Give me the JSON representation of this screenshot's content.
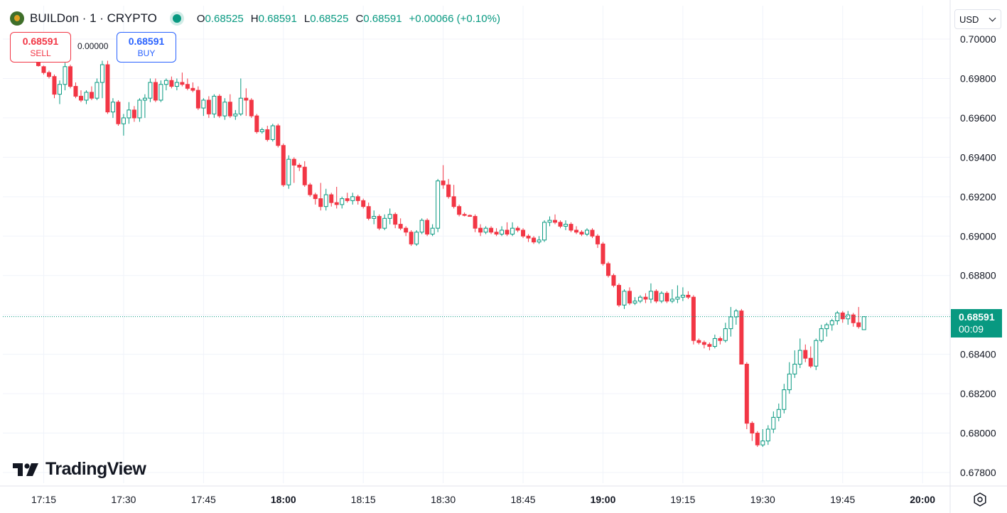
{
  "header": {
    "symbol": "BUILDon · 1 · CRYPTO",
    "ohlc": [
      {
        "key": "O",
        "value": "0.68525"
      },
      {
        "key": "H",
        "value": "0.68591"
      },
      {
        "key": "L",
        "value": "0.68525"
      },
      {
        "key": "C",
        "value": "0.68591"
      }
    ],
    "change": "+0.00066 (+0.10%)"
  },
  "trade": {
    "sell_price": "0.68591",
    "sell_label": "SELL",
    "spread": "0.00000",
    "buy_price": "0.68591",
    "buy_label": "BUY"
  },
  "currency": "USD",
  "last_price": {
    "price": "0.68591",
    "countdown": "00:09"
  },
  "brand": "TradingView",
  "colors": {
    "up": "#089981",
    "down": "#f23645",
    "grid": "#f0f3fa",
    "text": "#131722",
    "accent": "#2962ff"
  },
  "icons": {
    "settings": "settings-icon",
    "logo": "tradingview-logo-icon",
    "coin": "coin-icon",
    "live": "market-open-icon"
  },
  "chart_data": {
    "type": "candlestick",
    "title": "BUILDon · 1 · CRYPTO",
    "ylim": [
      0.6775,
      0.7008
    ],
    "y_ticks": [
      "0.70000",
      "0.69800",
      "0.69600",
      "0.69400",
      "0.69200",
      "0.69000",
      "0.68800",
      "0.68600",
      "0.68400",
      "0.68200",
      "0.68000",
      "0.67800"
    ],
    "x_ticks": [
      {
        "label": "17:15",
        "bold": false
      },
      {
        "label": "17:30",
        "bold": false
      },
      {
        "label": "17:45",
        "bold": false
      },
      {
        "label": "18:00",
        "bold": true
      },
      {
        "label": "18:15",
        "bold": false
      },
      {
        "label": "18:30",
        "bold": false
      },
      {
        "label": "18:45",
        "bold": false
      },
      {
        "label": "19:00",
        "bold": true
      },
      {
        "label": "19:15",
        "bold": false
      },
      {
        "label": "19:30",
        "bold": false
      },
      {
        "label": "19:45",
        "bold": false
      },
      {
        "label": "20:00",
        "bold": true
      }
    ],
    "grid": true,
    "interval_minutes": 1,
    "candles": [
      [
        0.69905,
        0.6991,
        0.69895,
        0.699
      ],
      [
        0.6988,
        0.69885,
        0.6986,
        0.69865
      ],
      [
        0.6986,
        0.69865,
        0.6982,
        0.6983
      ],
      [
        0.6983,
        0.6984,
        0.698,
        0.6981
      ],
      [
        0.6981,
        0.6982,
        0.697,
        0.6972
      ],
      [
        0.6972,
        0.6979,
        0.6967,
        0.6977
      ],
      [
        0.6977,
        0.6988,
        0.6974,
        0.6986
      ],
      [
        0.6986,
        0.6987,
        0.6975,
        0.6976
      ],
      [
        0.6976,
        0.6978,
        0.697,
        0.6971
      ],
      [
        0.6971,
        0.6974,
        0.6968,
        0.6969
      ],
      [
        0.6969,
        0.6974,
        0.6967,
        0.6973
      ],
      [
        0.6973,
        0.6976,
        0.6969,
        0.697
      ],
      [
        0.697,
        0.698,
        0.6969,
        0.6978
      ],
      [
        0.6978,
        0.6989,
        0.697,
        0.6987
      ],
      [
        0.6987,
        0.6989,
        0.6962,
        0.6963
      ],
      [
        0.6963,
        0.697,
        0.696,
        0.6968
      ],
      [
        0.6968,
        0.6969,
        0.6956,
        0.6957
      ],
      [
        0.6957,
        0.6962,
        0.6951,
        0.696
      ],
      [
        0.696,
        0.6968,
        0.6957,
        0.6964
      ],
      [
        0.6964,
        0.6966,
        0.6958,
        0.696
      ],
      [
        0.696,
        0.697,
        0.6958,
        0.6969
      ],
      [
        0.6969,
        0.6972,
        0.696,
        0.697
      ],
      [
        0.697,
        0.698,
        0.6968,
        0.6978
      ],
      [
        0.6978,
        0.698,
        0.6968,
        0.6969
      ],
      [
        0.6969,
        0.6979,
        0.6968,
        0.6977
      ],
      [
        0.6977,
        0.698,
        0.6974,
        0.6979
      ],
      [
        0.6979,
        0.6981,
        0.6975,
        0.6976
      ],
      [
        0.6976,
        0.698,
        0.6974,
        0.6978
      ],
      [
        0.6978,
        0.6983,
        0.6976,
        0.6977
      ],
      [
        0.6977,
        0.698,
        0.6974,
        0.6975
      ],
      [
        0.6975,
        0.6978,
        0.6973,
        0.6974
      ],
      [
        0.6974,
        0.6976,
        0.6964,
        0.6965
      ],
      [
        0.6965,
        0.697,
        0.6961,
        0.6969
      ],
      [
        0.6969,
        0.6971,
        0.696,
        0.6962
      ],
      [
        0.6962,
        0.6972,
        0.696,
        0.6971
      ],
      [
        0.6971,
        0.6972,
        0.696,
        0.6961
      ],
      [
        0.6961,
        0.697,
        0.6959,
        0.6968
      ],
      [
        0.6968,
        0.6972,
        0.696,
        0.6961
      ],
      [
        0.6961,
        0.6964,
        0.6959,
        0.6962
      ],
      [
        0.6962,
        0.698,
        0.6961,
        0.697
      ],
      [
        0.697,
        0.6975,
        0.6961,
        0.6969
      ],
      [
        0.6969,
        0.697,
        0.696,
        0.6961
      ],
      [
        0.6961,
        0.6962,
        0.6952,
        0.6953
      ],
      [
        0.6953,
        0.6955,
        0.6952,
        0.6954
      ],
      [
        0.6954,
        0.6956,
        0.6948,
        0.6949
      ],
      [
        0.6949,
        0.6957,
        0.6948,
        0.6956
      ],
      [
        0.6956,
        0.6957,
        0.6945,
        0.6946
      ],
      [
        0.6946,
        0.6947,
        0.6925,
        0.6926
      ],
      [
        0.6926,
        0.6941,
        0.6924,
        0.6939
      ],
      [
        0.6939,
        0.694,
        0.6927,
        0.6936
      ],
      [
        0.6936,
        0.6937,
        0.6933,
        0.6935
      ],
      [
        0.6935,
        0.6938,
        0.6925,
        0.6926
      ],
      [
        0.6926,
        0.6927,
        0.692,
        0.6921
      ],
      [
        0.6921,
        0.6922,
        0.6916,
        0.6919
      ],
      [
        0.6919,
        0.6927,
        0.6913,
        0.6915
      ],
      [
        0.6915,
        0.6924,
        0.6913,
        0.6921
      ],
      [
        0.6921,
        0.6922,
        0.6915,
        0.6917
      ],
      [
        0.6917,
        0.6925,
        0.6914,
        0.6916
      ],
      [
        0.6916,
        0.692,
        0.6914,
        0.6919
      ],
      [
        0.6919,
        0.6922,
        0.6917,
        0.6918
      ],
      [
        0.6918,
        0.6922,
        0.6916,
        0.692
      ],
      [
        0.692,
        0.6921,
        0.6916,
        0.6918
      ],
      [
        0.6918,
        0.6919,
        0.6914,
        0.6915
      ],
      [
        0.6915,
        0.6917,
        0.6908,
        0.6909
      ],
      [
        0.6909,
        0.6913,
        0.6906,
        0.691
      ],
      [
        0.691,
        0.6911,
        0.6903,
        0.6904
      ],
      [
        0.6904,
        0.6911,
        0.6903,
        0.6909
      ],
      [
        0.6909,
        0.6914,
        0.6906,
        0.6911
      ],
      [
        0.6911,
        0.6912,
        0.6904,
        0.6906
      ],
      [
        0.6906,
        0.6909,
        0.6903,
        0.6904
      ],
      [
        0.6904,
        0.6905,
        0.69,
        0.6902
      ],
      [
        0.6902,
        0.6903,
        0.6895,
        0.6896
      ],
      [
        0.6896,
        0.6903,
        0.6895,
        0.6902
      ],
      [
        0.6902,
        0.6909,
        0.6901,
        0.6908
      ],
      [
        0.6908,
        0.6909,
        0.69,
        0.6901
      ],
      [
        0.6901,
        0.6906,
        0.69,
        0.6904
      ],
      [
        0.6904,
        0.6929,
        0.6902,
        0.6928
      ],
      [
        0.6928,
        0.6936,
        0.6924,
        0.6926
      ],
      [
        0.6926,
        0.6929,
        0.6919,
        0.692
      ],
      [
        0.692,
        0.6926,
        0.6914,
        0.6915
      ],
      [
        0.6915,
        0.6916,
        0.691,
        0.6911
      ],
      [
        0.6911,
        0.6912,
        0.691,
        0.69105
      ],
      [
        0.69105,
        0.6911,
        0.691,
        0.691
      ],
      [
        0.691,
        0.6911,
        0.6902,
        0.6904
      ],
      [
        0.6904,
        0.6906,
        0.69,
        0.6902
      ],
      [
        0.6902,
        0.6905,
        0.6901,
        0.6904
      ],
      [
        0.6904,
        0.6905,
        0.6901,
        0.6902
      ],
      [
        0.6902,
        0.6904,
        0.69,
        0.6901
      ],
      [
        0.6901,
        0.6905,
        0.69,
        0.6903
      ],
      [
        0.6903,
        0.6907,
        0.69,
        0.6901
      ],
      [
        0.6901,
        0.6907,
        0.69,
        0.6904
      ],
      [
        0.6904,
        0.6905,
        0.6902,
        0.6903
      ],
      [
        0.6903,
        0.6904,
        0.6899,
        0.69
      ],
      [
        0.69,
        0.6901,
        0.6897,
        0.6899
      ],
      [
        0.6899,
        0.69,
        0.6896,
        0.6897
      ],
      [
        0.6897,
        0.69,
        0.6896,
        0.6898
      ],
      [
        0.6898,
        0.6908,
        0.6897,
        0.6907
      ],
      [
        0.6907,
        0.691,
        0.6905,
        0.6908
      ],
      [
        0.6908,
        0.6911,
        0.6906,
        0.6907
      ],
      [
        0.6907,
        0.6908,
        0.6904,
        0.6905
      ],
      [
        0.6905,
        0.6908,
        0.6903,
        0.6906
      ],
      [
        0.6906,
        0.6907,
        0.6902,
        0.6903
      ],
      [
        0.6903,
        0.6905,
        0.6901,
        0.6902
      ],
      [
        0.6902,
        0.6903,
        0.69,
        0.6901
      ],
      [
        0.6901,
        0.6904,
        0.69,
        0.6903
      ],
      [
        0.6903,
        0.6904,
        0.6899,
        0.69
      ],
      [
        0.69,
        0.6901,
        0.6894,
        0.6896
      ],
      [
        0.6896,
        0.6897,
        0.6885,
        0.6886
      ],
      [
        0.6886,
        0.6887,
        0.6879,
        0.688
      ],
      [
        0.688,
        0.6881,
        0.6874,
        0.6875
      ],
      [
        0.6875,
        0.6876,
        0.6864,
        0.6865
      ],
      [
        0.6865,
        0.6873,
        0.6863,
        0.6872
      ],
      [
        0.6872,
        0.6874,
        0.6865,
        0.6866
      ],
      [
        0.6866,
        0.6869,
        0.6865,
        0.6867
      ],
      [
        0.6867,
        0.687,
        0.6866,
        0.6869
      ],
      [
        0.6869,
        0.6871,
        0.6866,
        0.6868
      ],
      [
        0.6868,
        0.6876,
        0.6866,
        0.6872
      ],
      [
        0.6872,
        0.6873,
        0.6866,
        0.6867
      ],
      [
        0.6867,
        0.6872,
        0.6866,
        0.6871
      ],
      [
        0.6871,
        0.6872,
        0.6866,
        0.6867
      ],
      [
        0.6867,
        0.6873,
        0.6866,
        0.6868
      ],
      [
        0.6868,
        0.6875,
        0.6866,
        0.6869
      ],
      [
        0.6869,
        0.6874,
        0.6867,
        0.687
      ],
      [
        0.687,
        0.6872,
        0.6868,
        0.6869
      ],
      [
        0.6869,
        0.687,
        0.6845,
        0.6847
      ],
      [
        0.6847,
        0.6848,
        0.6845,
        0.6846
      ],
      [
        0.6846,
        0.6847,
        0.6843,
        0.6845
      ],
      [
        0.6845,
        0.6846,
        0.6842,
        0.6844
      ],
      [
        0.6844,
        0.685,
        0.6843,
        0.6848
      ],
      [
        0.6848,
        0.6849,
        0.6845,
        0.6847
      ],
      [
        0.6847,
        0.6856,
        0.6846,
        0.6853
      ],
      [
        0.6853,
        0.6864,
        0.6849,
        0.6859
      ],
      [
        0.6859,
        0.6863,
        0.6855,
        0.6862
      ],
      [
        0.6862,
        0.6863,
        0.6836,
        0.6835
      ],
      [
        0.6835,
        0.6836,
        0.6802,
        0.6805
      ],
      [
        0.6805,
        0.6806,
        0.6796,
        0.68
      ],
      [
        0.68,
        0.6801,
        0.6793,
        0.6794
      ],
      [
        0.6794,
        0.6802,
        0.6793,
        0.6796
      ],
      [
        0.6796,
        0.6804,
        0.6794,
        0.6802
      ],
      [
        0.6802,
        0.6811,
        0.68,
        0.6808
      ],
      [
        0.6808,
        0.6815,
        0.6806,
        0.6812
      ],
      [
        0.6812,
        0.6825,
        0.681,
        0.6822
      ],
      [
        0.6822,
        0.6836,
        0.682,
        0.683
      ],
      [
        0.683,
        0.6842,
        0.6828,
        0.6835
      ],
      [
        0.6835,
        0.6848,
        0.6833,
        0.6842
      ],
      [
        0.6842,
        0.6845,
        0.6836,
        0.6838
      ],
      [
        0.6838,
        0.6844,
        0.6833,
        0.6834
      ],
      [
        0.6834,
        0.6848,
        0.6832,
        0.6847
      ],
      [
        0.6847,
        0.6855,
        0.6846,
        0.6853
      ],
      [
        0.6853,
        0.6856,
        0.6849,
        0.6855
      ],
      [
        0.6855,
        0.6858,
        0.6852,
        0.6857
      ],
      [
        0.6857,
        0.6862,
        0.6855,
        0.6861
      ],
      [
        0.6861,
        0.6862,
        0.6856,
        0.6858
      ],
      [
        0.6858,
        0.6862,
        0.6855,
        0.686
      ],
      [
        0.686,
        0.6861,
        0.6854,
        0.6856
      ],
      [
        0.6856,
        0.6864,
        0.6853,
        0.6854
      ],
      [
        0.68525,
        0.68591,
        0.68525,
        0.68591
      ]
    ]
  }
}
